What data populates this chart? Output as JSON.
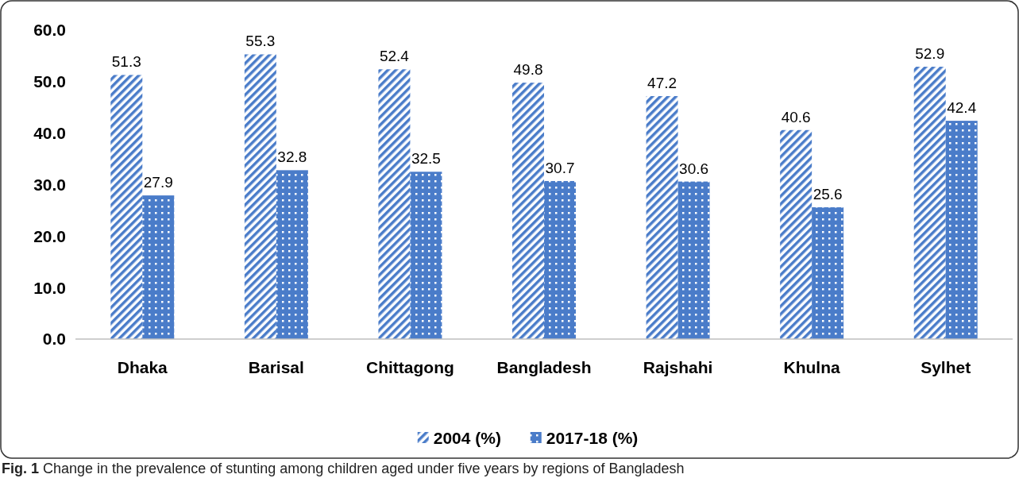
{
  "chart_data": {
    "type": "bar",
    "categories": [
      "Dhaka",
      "Barisal",
      "Chittagong",
      "Bangladesh",
      "Rajshahi",
      "Khulna",
      "Sylhet"
    ],
    "series": [
      {
        "name": "2004 (%)",
        "color": "#4a7cc9",
        "values": [
          51.3,
          55.3,
          52.4,
          49.8,
          47.2,
          40.6,
          52.9
        ]
      },
      {
        "name": "2017-18 (%)",
        "color": "#4a7cc9",
        "values": [
          27.9,
          32.8,
          32.5,
          30.7,
          30.6,
          25.6,
          42.4
        ]
      }
    ],
    "ylim": [
      0,
      60
    ],
    "yticks": [
      {
        "value": 0,
        "label": "0.0"
      },
      {
        "value": 10,
        "label": "10.0"
      },
      {
        "value": 20,
        "label": "20.0"
      },
      {
        "value": 30,
        "label": "30.0"
      },
      {
        "value": 40,
        "label": "40.0"
      },
      {
        "value": 50,
        "label": "50.0"
      },
      {
        "value": 60,
        "label": "60.0"
      }
    ],
    "data_labels": true,
    "grid": false,
    "legend": "bottom",
    "annotations": [
      "Fig. 1 Change in the prevalence of stunting among children aged under five years by regions of Bangladesh"
    ]
  }
}
